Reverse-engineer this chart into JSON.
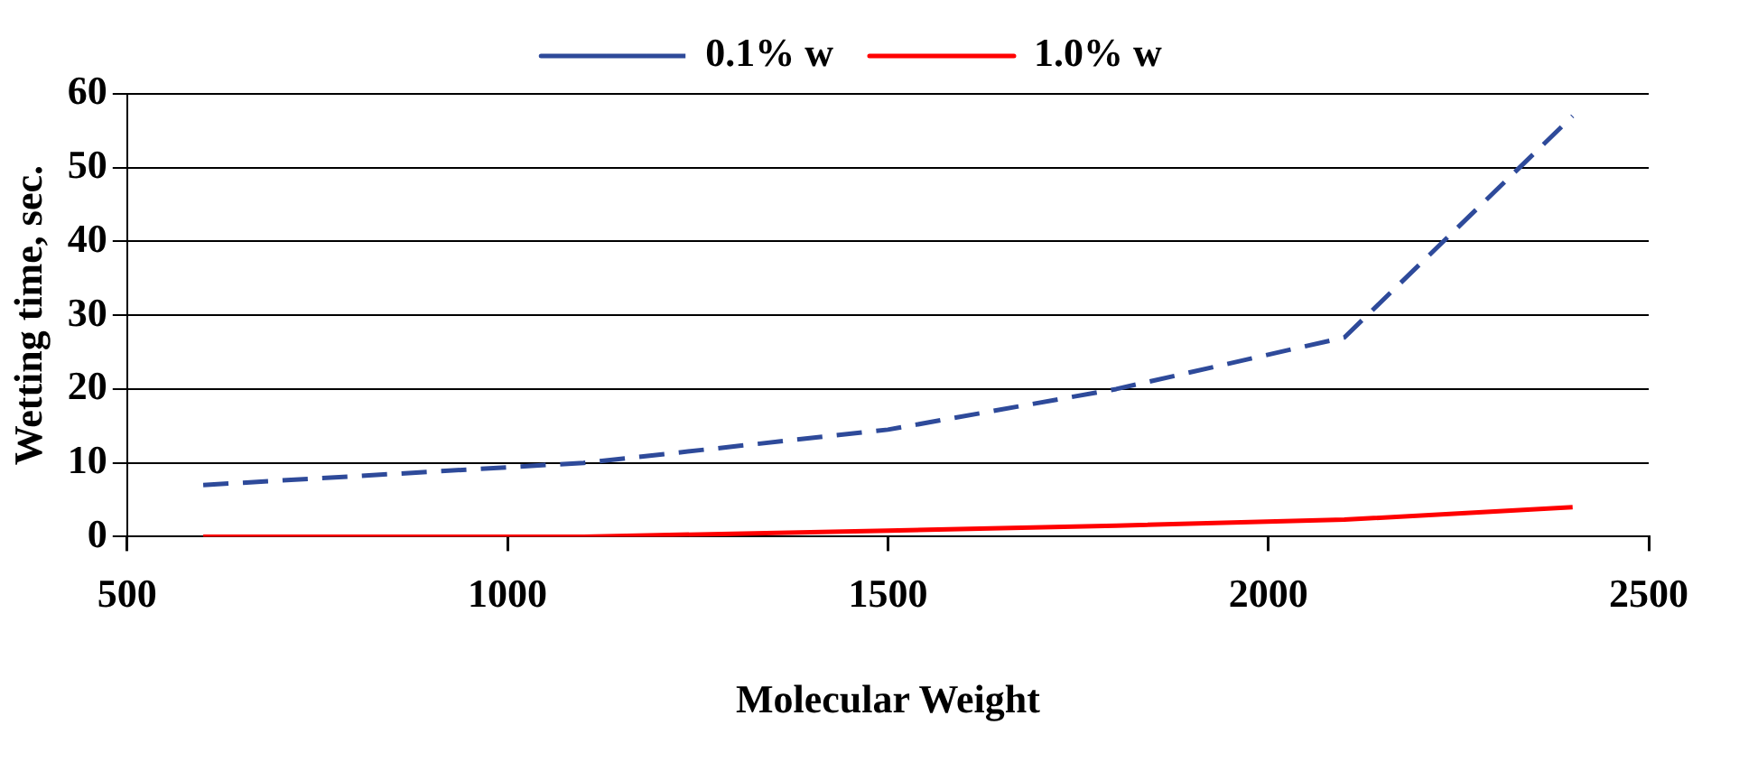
{
  "chart_data": {
    "type": "line",
    "xlabel": "Molecular Weight",
    "ylabel": "Wetting time, sec.",
    "x": [
      600,
      1100,
      1500,
      1800,
      2100,
      2400
    ],
    "series": [
      {
        "name": "0.1% w",
        "color": "#2e4a9a",
        "line_style": "dashed",
        "values": [
          7,
          10,
          14.5,
          20,
          27,
          57
        ]
      },
      {
        "name": "1.0% w",
        "color": "#ff0000",
        "line_style": "solid",
        "values": [
          0,
          0,
          0.8,
          1.5,
          2.3,
          4
        ]
      }
    ],
    "xlim": [
      500,
      2500
    ],
    "xticks": [
      500,
      1000,
      1500,
      2000,
      2500
    ],
    "ylim": [
      0,
      60
    ],
    "yticks": [
      0,
      10,
      20,
      30,
      40,
      50,
      60
    ],
    "grid": "y",
    "legend": "top",
    "marker": "none"
  }
}
